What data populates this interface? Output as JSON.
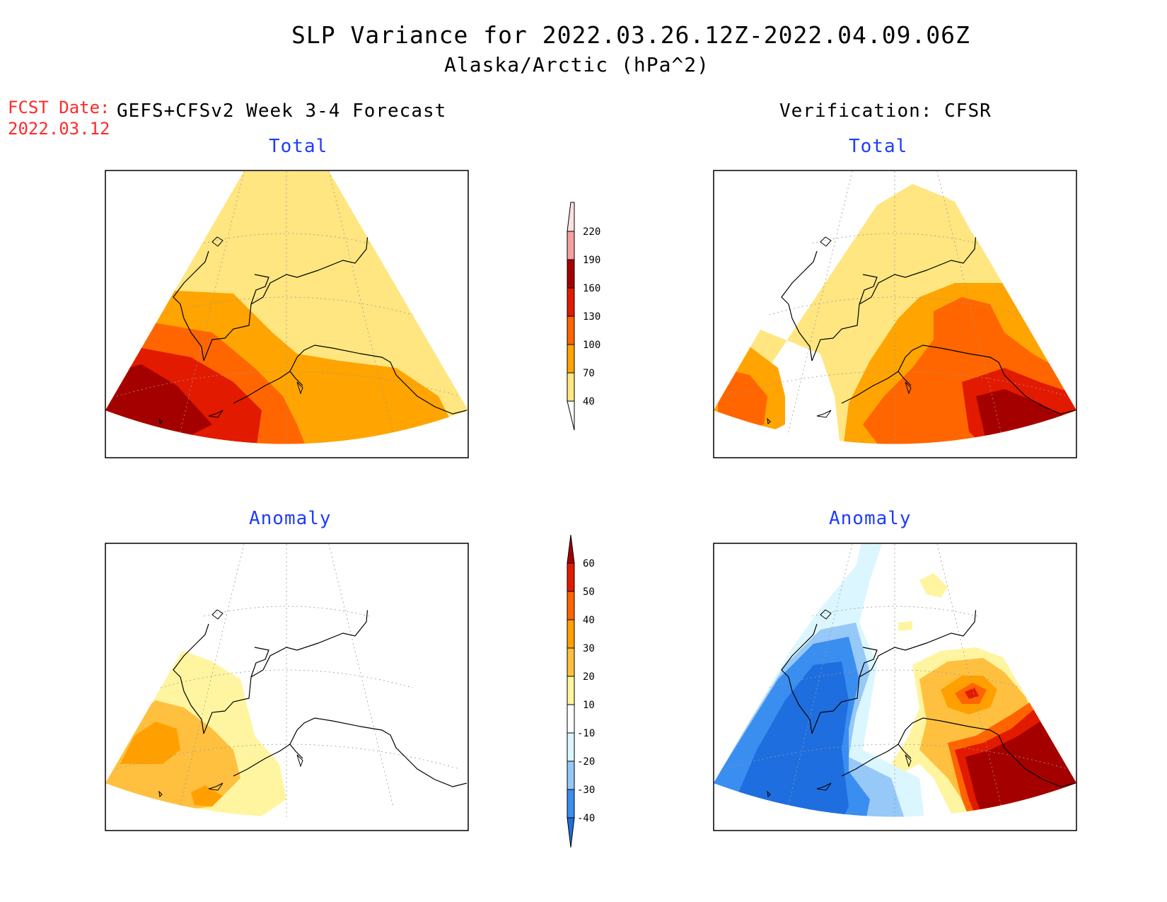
{
  "title": {
    "line1": "SLP Variance for 2022.03.26.12Z-2022.04.09.06Z",
    "line2": "Alaska/Arctic (hPa^2)"
  },
  "fcst_date": {
    "label": "FCST Date:",
    "value": "2022.03.12"
  },
  "left_column": {
    "model": "GEFS+CFSv2 Week 3-4 Forecast",
    "top_panel_title": "Total",
    "bottom_panel_title": "Anomaly"
  },
  "right_column": {
    "model": "Verification: CFSR",
    "top_panel_title": "Total",
    "bottom_panel_title": "Anomaly"
  },
  "colors": {
    "total_levels": [
      "#ffe680",
      "#ffa400",
      "#ff6600",
      "#e21a00",
      "#a50000",
      "#f4a0a0",
      "#ffe0e0"
    ],
    "anomaly_levels": [
      "#1e6ee0",
      "#3a8ef0",
      "#96c8f8",
      "#dcf6ff",
      "#ffffff",
      "#fff5a0",
      "#ffc040",
      "#ffa000",
      "#ff6400",
      "#e21a00",
      "#a50000"
    ]
  },
  "colorbar_total": {
    "ticks": [
      "40",
      "70",
      "100",
      "130",
      "160",
      "190",
      "220"
    ]
  },
  "colorbar_anomaly": {
    "ticks": [
      "-40",
      "-30",
      "-20",
      "-10",
      "10",
      "20",
      "30",
      "40",
      "50",
      "60"
    ]
  }
}
